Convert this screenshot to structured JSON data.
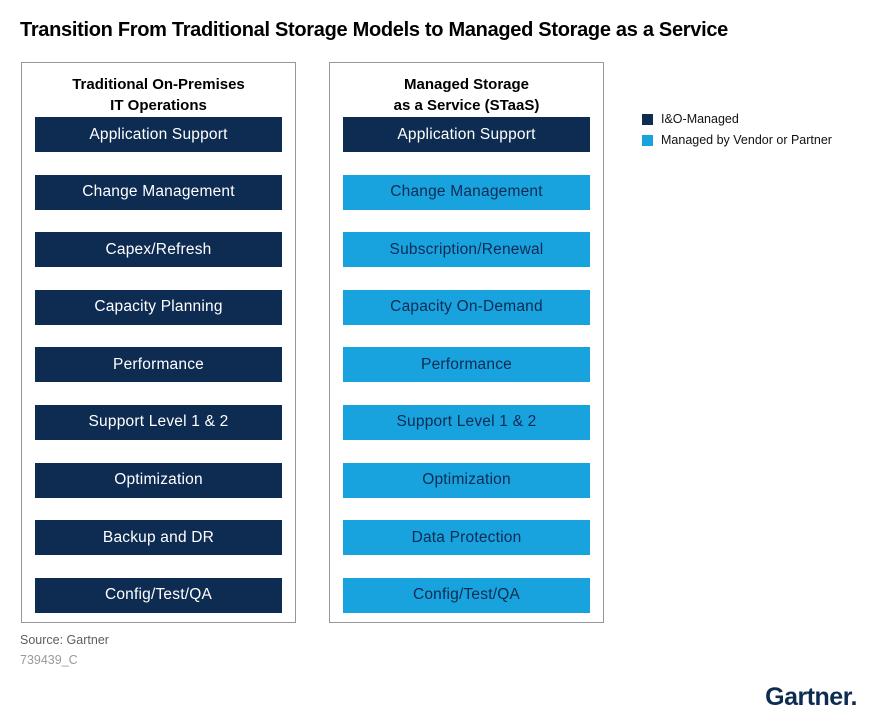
{
  "title": "Transition From Traditional Storage Models to Managed Storage as a Service",
  "colors": {
    "navy": "#0e2b52",
    "blue": "#18a3df"
  },
  "panels": [
    {
      "header_line1": "Traditional On-Premises",
      "header_line2": "IT Operations",
      "items": [
        {
          "label": "Application Support",
          "type": "navy"
        },
        {
          "label": "Change Management",
          "type": "navy"
        },
        {
          "label": "Capex/Refresh",
          "type": "navy"
        },
        {
          "label": "Capacity Planning",
          "type": "navy"
        },
        {
          "label": "Performance",
          "type": "navy"
        },
        {
          "label": "Support Level 1 & 2",
          "type": "navy"
        },
        {
          "label": "Optimization",
          "type": "navy"
        },
        {
          "label": "Backup and DR",
          "type": "navy"
        },
        {
          "label": "Config/Test/QA",
          "type": "navy"
        }
      ]
    },
    {
      "header_line1": "Managed Storage",
      "header_line2": "as a Service (STaaS)",
      "items": [
        {
          "label": "Application Support",
          "type": "navy"
        },
        {
          "label": "Change Management",
          "type": "blue"
        },
        {
          "label": "Subscription/Renewal",
          "type": "blue"
        },
        {
          "label": "Capacity On-Demand",
          "type": "blue"
        },
        {
          "label": "Performance",
          "type": "blue"
        },
        {
          "label": "Support Level 1 & 2",
          "type": "blue"
        },
        {
          "label": "Optimization",
          "type": "blue"
        },
        {
          "label": "Data Protection",
          "type": "blue"
        },
        {
          "label": "Config/Test/QA",
          "type": "blue"
        }
      ]
    }
  ],
  "legend": {
    "items": [
      {
        "label": "I&O-Managed",
        "color": "#0e2b52"
      },
      {
        "label": "Managed by Vendor or Partner",
        "color": "#18a3df"
      }
    ]
  },
  "footer": {
    "source": "Source: Gartner",
    "code": "739439_C",
    "logo": "Gartner."
  }
}
